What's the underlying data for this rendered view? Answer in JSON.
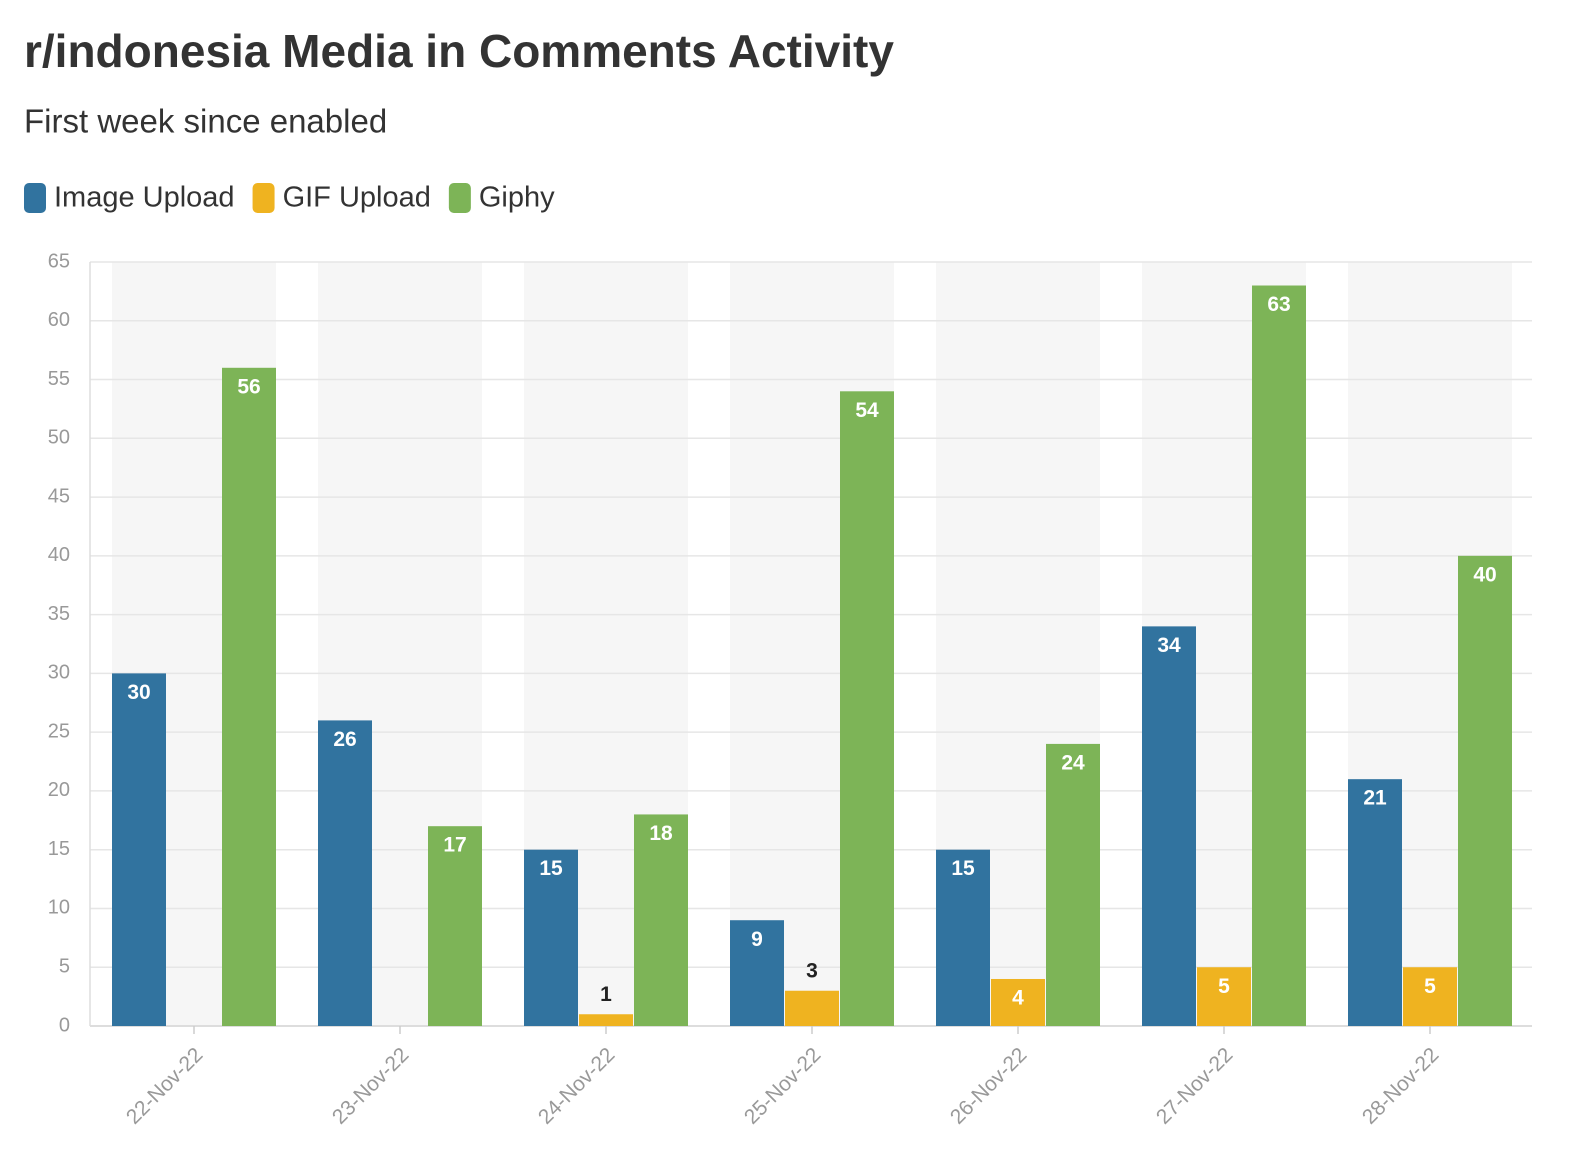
{
  "chart_data": {
    "type": "bar",
    "title": "r/indonesia Media in Comments Activity",
    "subtitle": "First week since enabled",
    "categories": [
      "22-Nov-22",
      "23-Nov-22",
      "24-Nov-22",
      "25-Nov-22",
      "26-Nov-22",
      "27-Nov-22",
      "28-Nov-22"
    ],
    "series": [
      {
        "name": "Image Upload",
        "color": "#31739f",
        "values": [
          30,
          26,
          15,
          9,
          15,
          34,
          21
        ]
      },
      {
        "name": "GIF Upload",
        "color": "#efb320",
        "values": [
          null,
          null,
          1,
          3,
          4,
          5,
          5
        ]
      },
      {
        "name": "Giphy",
        "color": "#7db457",
        "values": [
          56,
          17,
          18,
          54,
          24,
          63,
          40
        ]
      }
    ],
    "ylim": [
      0,
      65
    ],
    "yticks": [
      0,
      5,
      10,
      15,
      20,
      25,
      30,
      35,
      40,
      45,
      50,
      55,
      60,
      65
    ],
    "grid": true,
    "legend": "top-left"
  }
}
